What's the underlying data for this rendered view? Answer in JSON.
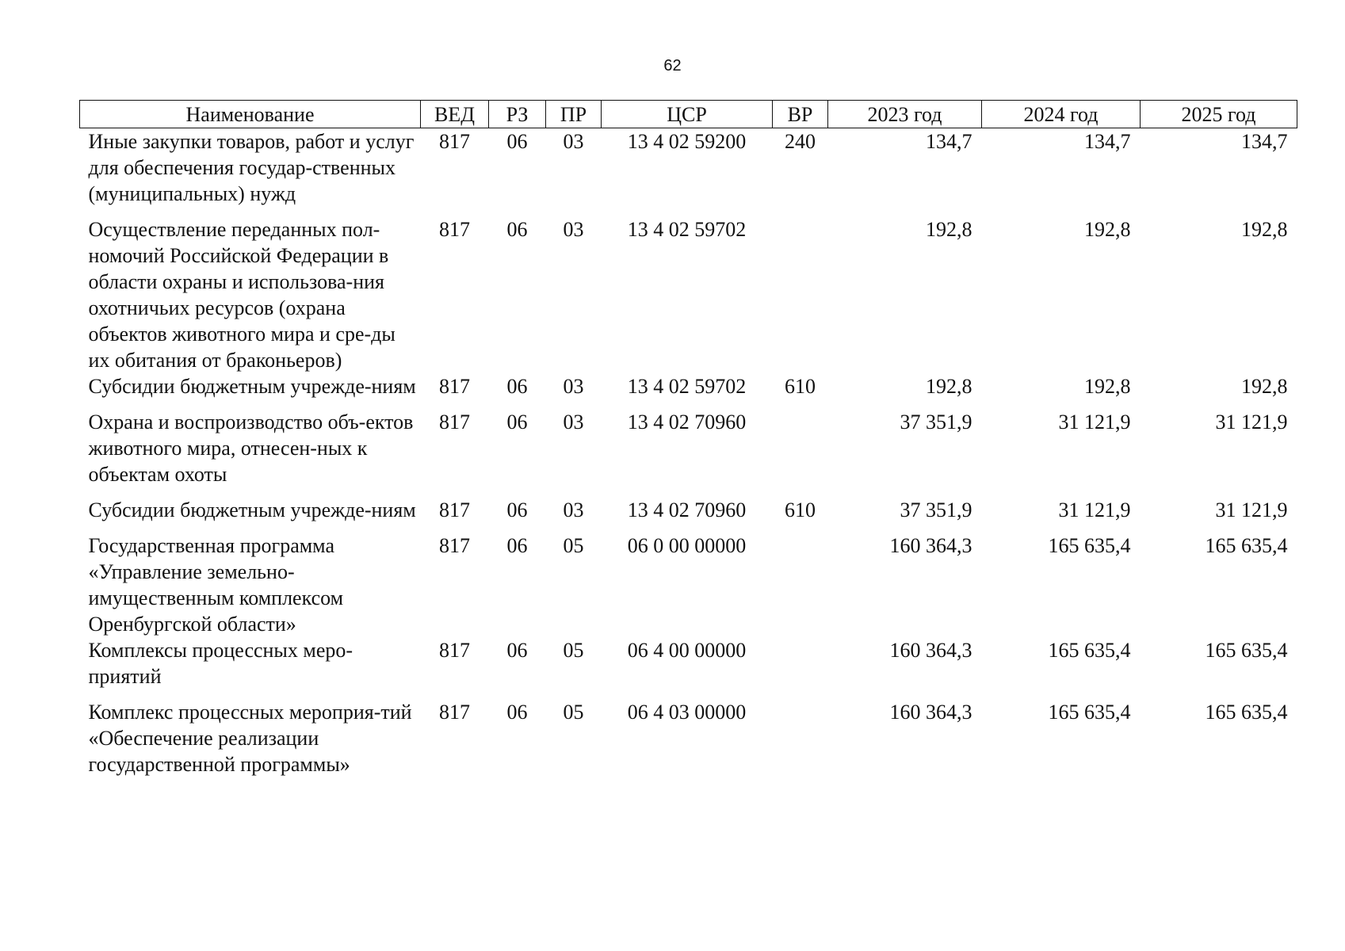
{
  "page_number": "62",
  "table": {
    "headers": [
      "Наименование",
      "ВЕД",
      "РЗ",
      "ПР",
      "ЦСР",
      "ВР",
      "2023 год",
      "2024 год",
      "2025 год"
    ],
    "rows": [
      {
        "name": "Иные закупки товаров, работ и услуг для обеспечения государ-ственных (муниципальных) нужд",
        "ved": "817",
        "rz": "06",
        "pr": "03",
        "csr": "13 4 02 59200",
        "vr": "240",
        "y2023": "134,7",
        "y2024": "134,7",
        "y2025": "134,7"
      },
      {
        "name": "Осуществление переданных пол-номочий Российской Федерации в области охраны и использова-ния охотничьих ресурсов (охрана объектов животного мира и сре-ды их обитания от браконьеров)",
        "ved": "817",
        "rz": "06",
        "pr": "03",
        "csr": "13 4 02 59702",
        "vr": "",
        "y2023": "192,8",
        "y2024": "192,8",
        "y2025": "192,8"
      },
      {
        "name": "Субсидии бюджетным учрежде-ниям",
        "ved": "817",
        "rz": "06",
        "pr": "03",
        "csr": "13 4 02 59702",
        "vr": "610",
        "y2023": "192,8",
        "y2024": "192,8",
        "y2025": "192,8"
      },
      {
        "name": "Охрана и воспроизводство объ-ектов животного мира, отнесен-ных к объектам охоты",
        "ved": "817",
        "rz": "06",
        "pr": "03",
        "csr": "13 4 02 70960",
        "vr": "",
        "y2023": "37 351,9",
        "y2024": "31 121,9",
        "y2025": "31 121,9"
      },
      {
        "name": "Субсидии бюджетным учрежде-ниям",
        "ved": "817",
        "rz": "06",
        "pr": "03",
        "csr": "13 4 02 70960",
        "vr": "610",
        "y2023": "37 351,9",
        "y2024": "31 121,9",
        "y2025": "31 121,9"
      },
      {
        "name": "Государственная программа «Управление земельно-имущественным комплексом Оренбургской области»",
        "ved": "817",
        "rz": "06",
        "pr": "05",
        "csr": "06 0 00 00000",
        "vr": "",
        "y2023": "160 364,3",
        "y2024": "165 635,4",
        "y2025": "165 635,4"
      },
      {
        "name": "Комплексы процессных меро-приятий",
        "ved": "817",
        "rz": "06",
        "pr": "05",
        "csr": "06 4 00 00000",
        "vr": "",
        "y2023": "160 364,3",
        "y2024": "165 635,4",
        "y2025": "165 635,4"
      },
      {
        "name": "Комплекс процессных мероприя-тий «Обеспечение реализации государственной программы»",
        "ved": "817",
        "rz": "06",
        "pr": "05",
        "csr": "06 4 03 00000",
        "vr": "",
        "y2023": "160 364,3",
        "y2024": "165 635,4",
        "y2025": "165 635,4"
      }
    ]
  }
}
